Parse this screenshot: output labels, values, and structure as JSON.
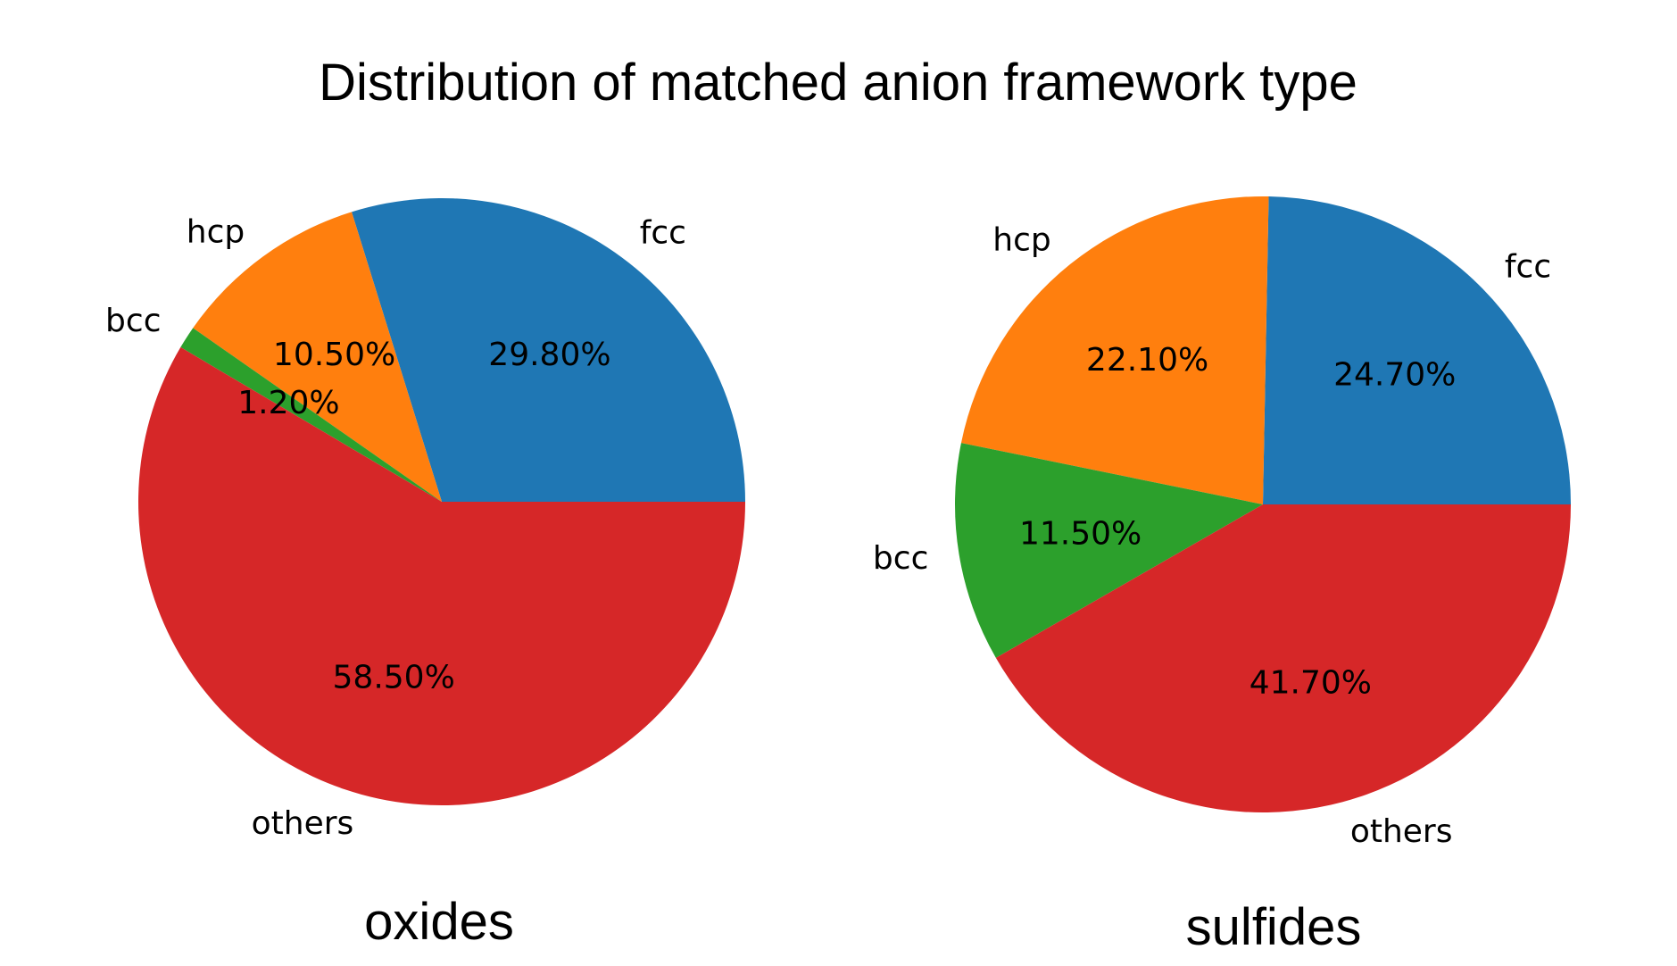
{
  "title": "Distribution of matched anion framework type",
  "chart_data": [
    {
      "type": "pie",
      "title": "oxides",
      "start_angle": 0,
      "direction": "counterclockwise",
      "slices": [
        {
          "label": "fcc",
          "value": 29.8,
          "pct_label": "29.80%",
          "color": "#1f77b4"
        },
        {
          "label": "hcp",
          "value": 10.5,
          "pct_label": "10.50%",
          "color": "#ff7f0e"
        },
        {
          "label": "bcc",
          "value": 1.2,
          "pct_label": "1.20%",
          "color": "#2ca02c"
        },
        {
          "label": "others",
          "value": 58.5,
          "pct_label": "58.50%",
          "color": "#d62728"
        }
      ]
    },
    {
      "type": "pie",
      "title": "sulfides",
      "start_angle": 0,
      "direction": "counterclockwise",
      "slices": [
        {
          "label": "fcc",
          "value": 24.7,
          "pct_label": "24.70%",
          "color": "#1f77b4"
        },
        {
          "label": "hcp",
          "value": 22.1,
          "pct_label": "22.10%",
          "color": "#ff7f0e"
        },
        {
          "label": "bcc",
          "value": 11.5,
          "pct_label": "11.50%",
          "color": "#2ca02c"
        },
        {
          "label": "others",
          "value": 41.7,
          "pct_label": "41.70%",
          "color": "#d62728"
        }
      ]
    }
  ]
}
